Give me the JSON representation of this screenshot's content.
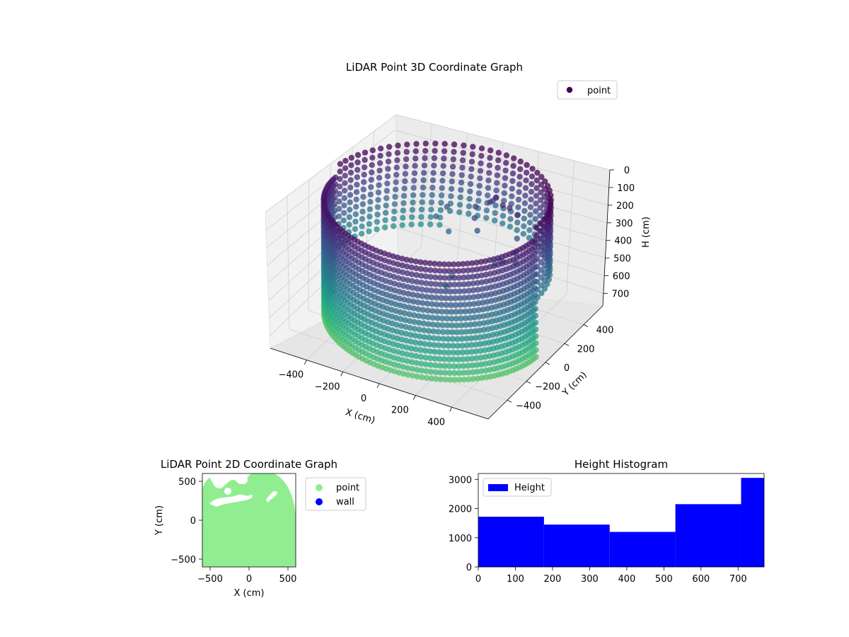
{
  "chart_data": [
    {
      "type": "scatter",
      "projection": "3d",
      "title": "LiDAR Point 3D Coordinate Graph",
      "xlabel": "X (cm)",
      "ylabel": "Y (cm)",
      "zlabel": "H (cm)",
      "xlim": [
        -600,
        600
      ],
      "ylim": [
        -600,
        600
      ],
      "zlim": [
        770,
        0
      ],
      "z_axis_inverted": true,
      "xticks": [
        "−400",
        "−200",
        "0",
        "200",
        "400"
      ],
      "yticks": [
        "−400",
        "−200",
        "0",
        "200",
        "400"
      ],
      "zticks": [
        "0",
        "100",
        "200",
        "300",
        "400",
        "500",
        "600",
        "700"
      ],
      "colormap": "viridis",
      "grid": true,
      "legend": {
        "entries": [
          "point"
        ],
        "position": "upper-right",
        "marker_color": "#440154"
      },
      "series": [
        {
          "name": "point",
          "shape": "cylindrical wall scan, radius about 560 cm, heights 0 to 770 cm, front half open toward viewer",
          "approx_points": [
            {
              "x": -560,
              "y": 0,
              "h": 600
            },
            {
              "x": 0,
              "y": -560,
              "h": 650
            },
            {
              "x": 560,
              "y": 0,
              "h": 600
            },
            {
              "x": 0,
              "y": 560,
              "h": 300
            },
            {
              "x": -300,
              "y": 470,
              "h": 300
            },
            {
              "x": 300,
              "y": 470,
              "h": 200
            }
          ]
        }
      ]
    },
    {
      "type": "scatter",
      "title": "LiDAR Point 2D Coordinate Graph",
      "xlabel": "X (cm)",
      "ylabel": "Y (cm)",
      "xlim": [
        -600,
        600
      ],
      "ylim": [
        -600,
        600
      ],
      "xticks": [
        "−500",
        "0",
        "500"
      ],
      "yticks": [
        "−500",
        "0",
        "500"
      ],
      "legend": {
        "position": "outside-right"
      },
      "series": [
        {
          "name": "point",
          "color": "#90ee90",
          "description": "dense fill covering the scanned area"
        },
        {
          "name": "wall",
          "color": "#0000ff",
          "values": []
        }
      ]
    },
    {
      "type": "bar",
      "subtype": "histogram",
      "title": "Height Histogram",
      "xlim": [
        0,
        770
      ],
      "ylim": [
        0,
        3200
      ],
      "xticks": [
        "0",
        "100",
        "200",
        "300",
        "400",
        "500",
        "600",
        "700"
      ],
      "yticks": [
        "0",
        "1000",
        "2000",
        "3000"
      ],
      "bin_edges": [
        0,
        177,
        354,
        531,
        708,
        770
      ],
      "counts": [
        1720,
        1450,
        1200,
        2150,
        3050
      ],
      "color": "#0000ff",
      "legend": {
        "entries": [
          "Height"
        ],
        "position": "upper-left"
      },
      "series": [
        {
          "name": "Height",
          "values": [
            1720,
            1450,
            1200,
            2150,
            3050
          ]
        }
      ]
    }
  ]
}
